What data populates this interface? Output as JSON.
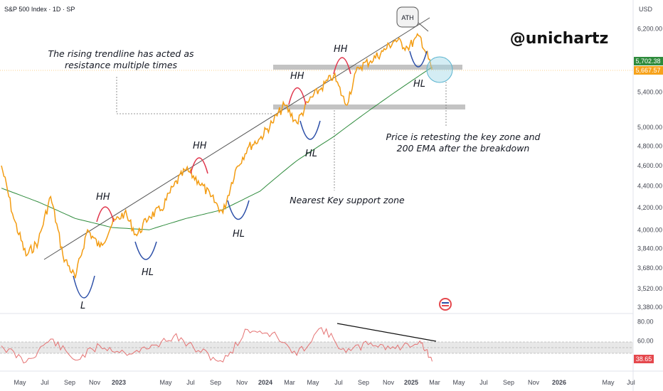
{
  "header": {
    "title": "S&P 500 Index · 1D · SP"
  },
  "watermark": "@unichartz",
  "currency": "USD",
  "colors": {
    "price": "#f39c12",
    "ema": "#2e8b3c",
    "trendline": "#555555",
    "hh_arc": "#e0334a",
    "hl_arc": "#2c4fa8",
    "zone": "#b8b8b8",
    "rsi": "#e57373",
    "last_price_bg": "#f7a21b",
    "ema_label_bg": "#2e8b3c",
    "rsi_label_bg": "#e5484d"
  },
  "annotations": {
    "trendline_note_1": "The rising trendline has acted as",
    "trendline_note_2": "resistance multiple times",
    "retest_note_1": "Price is retesting the key zone and",
    "retest_note_2": "200 EMA after the breakdown",
    "support_note": "Nearest Key support zone",
    "ath": "ATH",
    "hh": "HH",
    "hl": "HL",
    "l": "L"
  },
  "price_labels": {
    "ema_value": "5,702.38",
    "last_price": "5,667.57",
    "rsi_value": "38.65"
  },
  "chart_data": [
    {
      "type": "line",
      "title": "S&P 500 Index · 1D · SP",
      "y_ticks": [
        "6,200.00",
        "5,400.00",
        "5,000.00",
        "4,800.00",
        "4,600.00",
        "4,400.00",
        "4,200.00",
        "4,000.00",
        "3,840.00",
        "3,680.00",
        "3,520.00",
        "3,380.00"
      ],
      "x_ticks": [
        "May",
        "Jul",
        "Sep",
        "Nov",
        "2023",
        "May",
        "Jul",
        "Sep",
        "Nov",
        "2024",
        "Mar",
        "May",
        "Jul",
        "Sep",
        "Nov",
        "2025",
        "Mar",
        "May",
        "Jul",
        "Sep",
        "Nov",
        "2026",
        "May",
        "Jul"
      ],
      "bold_ticks": [
        "2023",
        "2024",
        "2025",
        "2026"
      ],
      "ylim": [
        3380,
        6300
      ],
      "scale": "log",
      "key_resistance_zone": [
        5670,
        5740
      ],
      "key_support_zone": [
        5260,
        5320
      ],
      "series": [
        {
          "x": [
            "2022-04",
            "2022-05",
            "2022-06",
            "2022-07",
            "2022-08",
            "2022-09",
            "2022-10",
            "2022-11",
            "2022-12",
            "2023-01",
            "2023-02",
            "2023-03",
            "2023-04",
            "2023-05",
            "2023-06",
            "2023-07",
            "2023-08",
            "2023-09",
            "2023-10",
            "2023-11",
            "2023-12",
            "2024-01",
            "2024-02",
            "2024-03",
            "2024-04",
            "2024-05",
            "2024-06",
            "2024-07",
            "2024-08",
            "2024-09",
            "2024-10",
            "2024-11",
            "2024-12",
            "2025-01",
            "2025-02",
            "2025-03"
          ],
          "values": [
            4600,
            4100,
            3780,
            3900,
            4300,
            3780,
            3600,
            4000,
            3850,
            4050,
            4150,
            3950,
            4120,
            4180,
            4400,
            4560,
            4450,
            4300,
            4150,
            4550,
            4780,
            4880,
            5050,
            5250,
            5050,
            5300,
            5450,
            5600,
            5250,
            5700,
            5780,
            5900,
            6050,
            5950,
            6100,
            5670
          ]
        },
        {
          "x": [
            "2022-04",
            "2022-07",
            "2022-10",
            "2023-01",
            "2023-04",
            "2023-07",
            "2023-10",
            "2024-01",
            "2024-04",
            "2024-07",
            "2024-10",
            "2025-01",
            "2025-03"
          ],
          "values": [
            4380,
            4250,
            4100,
            4020,
            4000,
            4100,
            4180,
            4350,
            4650,
            4900,
            5200,
            5500,
            5702
          ]
        }
      ]
    },
    {
      "type": "line",
      "ylim": [
        30,
        85
      ],
      "y_ticks": [
        "80.00",
        "60.00"
      ],
      "series": [
        {
          "x": [
            "2022-04",
            "2022-06",
            "2022-08",
            "2022-10",
            "2022-12",
            "2023-02",
            "2023-04",
            "2023-06",
            "2023-08",
            "2023-10",
            "2023-12",
            "2024-02",
            "2024-04",
            "2024-06",
            "2024-08",
            "2024-10",
            "2024-12",
            "2025-02",
            "2025-03"
          ],
          "values": [
            55,
            38,
            62,
            40,
            55,
            48,
            52,
            65,
            50,
            38,
            72,
            68,
            45,
            74,
            48,
            58,
            52,
            60,
            38.65
          ]
        }
      ]
    }
  ]
}
